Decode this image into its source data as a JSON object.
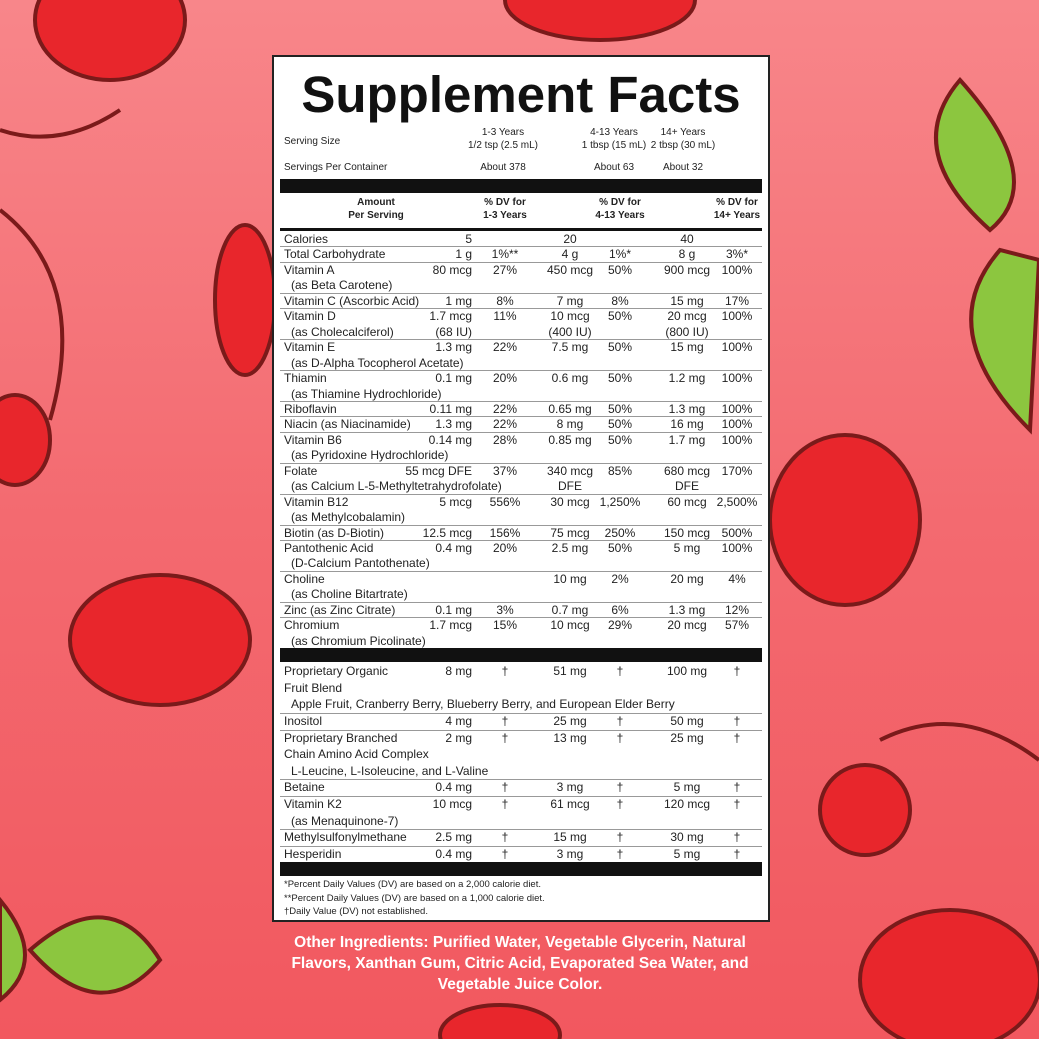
{
  "title": "Supplement Facts",
  "serving": {
    "size_label": "Serving Size",
    "per_container_label": "Servings Per Container",
    "groups": [
      {
        "age": "1-3 Years",
        "size": "1/2 tsp (2.5 mL)",
        "per_container": "About 378"
      },
      {
        "age": "4-13 Years",
        "size": "1 tbsp (15 mL)",
        "per_container": "About 63"
      },
      {
        "age": "14+ Years",
        "size": "2 tbsp (30 mL)",
        "per_container": "About 32"
      }
    ]
  },
  "header": {
    "amount": [
      "Amount",
      "Per Serving"
    ],
    "dv": [
      [
        "% DV for",
        "1-3 Years"
      ],
      [
        "% DV for",
        "4-13 Years"
      ],
      [
        "% DV for",
        "14+ Years"
      ]
    ]
  },
  "rows": [
    {
      "name": "Calories",
      "cells": [
        "5",
        null,
        "20",
        null,
        "40",
        null
      ]
    },
    {
      "name": "Total Carbohydrate",
      "cells": [
        "1 g",
        "1%**",
        "4 g",
        "1%*",
        "8 g",
        "3%*"
      ]
    },
    {
      "name": "Vitamin A",
      "sub": "(as Beta Carotene)",
      "cells": [
        "80 mcg",
        "27%",
        "450 mcg",
        "50%",
        "900 mcg",
        "100%"
      ]
    },
    {
      "name": "Vitamin C (Ascorbic Acid)",
      "cells": [
        "1 mg",
        "8%",
        "7 mg",
        "8%",
        "15 mg",
        "17%"
      ]
    },
    {
      "name": "Vitamin D",
      "sub": "(as Cholecalciferol)",
      "cells": [
        [
          "1.7 mcg",
          "(68 IU)"
        ],
        "11%",
        [
          "10 mcg",
          "(400 IU)"
        ],
        "50%",
        [
          "20 mcg",
          "(800 IU)"
        ],
        "100%"
      ]
    },
    {
      "name": "Vitamin E",
      "sub": "(as D-Alpha Tocopherol Acetate)",
      "cells": [
        "1.3 mg",
        "22%",
        "7.5 mg",
        "50%",
        "15 mg",
        "100%"
      ]
    },
    {
      "name": "Thiamin",
      "sub": "(as Thiamine Hydrochloride)",
      "cells": [
        "0.1 mg",
        "20%",
        "0.6 mg",
        "50%",
        "1.2 mg",
        "100%"
      ]
    },
    {
      "name": "Riboflavin",
      "cells": [
        "0.11 mg",
        "22%",
        "0.65 mg",
        "50%",
        "1.3 mg",
        "100%"
      ]
    },
    {
      "name": "Niacin (as Niacinamide)",
      "cells": [
        "1.3 mg",
        "22%",
        "8 mg",
        "50%",
        "16 mg",
        "100%"
      ]
    },
    {
      "name": "Vitamin B6",
      "sub": "(as Pyridoxine Hydrochloride)",
      "cells": [
        "0.14 mg",
        "28%",
        "0.85 mg",
        "50%",
        "1.7 mg",
        "100%"
      ]
    },
    {
      "name": "Folate",
      "sub": "(as Calcium L-5-Methyltetrahydrofolate)",
      "cells": [
        "55 mcg DFE",
        "37%",
        [
          "340 mcg",
          "DFE"
        ],
        "85%",
        [
          "680 mcg",
          "DFE"
        ],
        "170%"
      ]
    },
    {
      "name": "Vitamin B12",
      "sub": "(as Methylcobalamin)",
      "cells": [
        "5 mcg",
        "556%",
        "30 mcg",
        "1,250%",
        "60 mcg",
        "2,500%"
      ]
    },
    {
      "name": "Biotin (as D-Biotin)",
      "cells": [
        "12.5 mcg",
        "156%",
        "75 mcg",
        "250%",
        "150 mcg",
        "500%"
      ]
    },
    {
      "name": "Pantothenic Acid",
      "sub": "(D-Calcium Pantothenate)",
      "cells": [
        "0.4 mg",
        "20%",
        "2.5 mg",
        "50%",
        "5 mg",
        "100%"
      ]
    },
    {
      "name": "Choline",
      "sub": "(as Choline Bitartrate)",
      "cells": [
        null,
        null,
        "10 mg",
        "2%",
        "20 mg",
        "4%"
      ]
    },
    {
      "name": "Zinc (as Zinc Citrate)",
      "cells": [
        "0.1 mg",
        "3%",
        "0.7 mg",
        "6%",
        "1.3 mg",
        "12%"
      ]
    },
    {
      "name": "Chromium",
      "sub": "(as Chromium Picolinate)",
      "cells": [
        "1.7 mcg",
        "15%",
        "10 mcg",
        "29%",
        "20 mcg",
        "57%"
      ]
    }
  ],
  "rows2": [
    {
      "name": [
        "Proprietary Organic",
        "Fruit Blend"
      ],
      "sub": "Apple Fruit, Cranberry Berry, Blueberry Berry, and European Elder Berry",
      "cells": [
        "8 mg",
        "†",
        "51 mg",
        "†",
        "100 mg",
        "†"
      ]
    },
    {
      "name": "Inositol",
      "cells": [
        "4 mg",
        "†",
        "25 mg",
        "†",
        "50 mg",
        "†"
      ]
    },
    {
      "name": [
        "Proprietary Branched",
        "Chain Amino Acid Complex"
      ],
      "sub": "L-Leucine, L-Isoleucine, and L-Valine",
      "cells": [
        "2 mg",
        "†",
        "13 mg",
        "†",
        "25 mg",
        "†"
      ]
    },
    {
      "name": "Betaine",
      "cells": [
        "0.4 mg",
        "†",
        "3 mg",
        "†",
        "5 mg",
        "†"
      ]
    },
    {
      "name": "Vitamin K2",
      "sub": "(as Menaquinone-7)",
      "cells": [
        "10 mcg",
        "†",
        "61 mcg",
        "†",
        "120 mcg",
        "†"
      ]
    },
    {
      "name": "Methylsulfonylmethane",
      "cells": [
        "2.5 mg",
        "†",
        "15 mg",
        "†",
        "30 mg",
        "†"
      ]
    },
    {
      "name": "Hesperidin",
      "cells": [
        "0.4 mg",
        "†",
        "3 mg",
        "†",
        "5 mg",
        "†"
      ]
    }
  ],
  "footnotes": [
    "*Percent Daily Values (DV) are based on a 2,000 calorie diet.",
    "**Percent Daily Values (DV) are based on a 1,000 calorie diet.",
    "†Daily Value (DV) not established."
  ],
  "other_ingredients": "Other Ingredients: Purified Water, Vegetable Glycerin, Natural Flavors, Xanthan Gum, Citric Acid, Evaporated Sea Water, and Vegetable Juice Color."
}
